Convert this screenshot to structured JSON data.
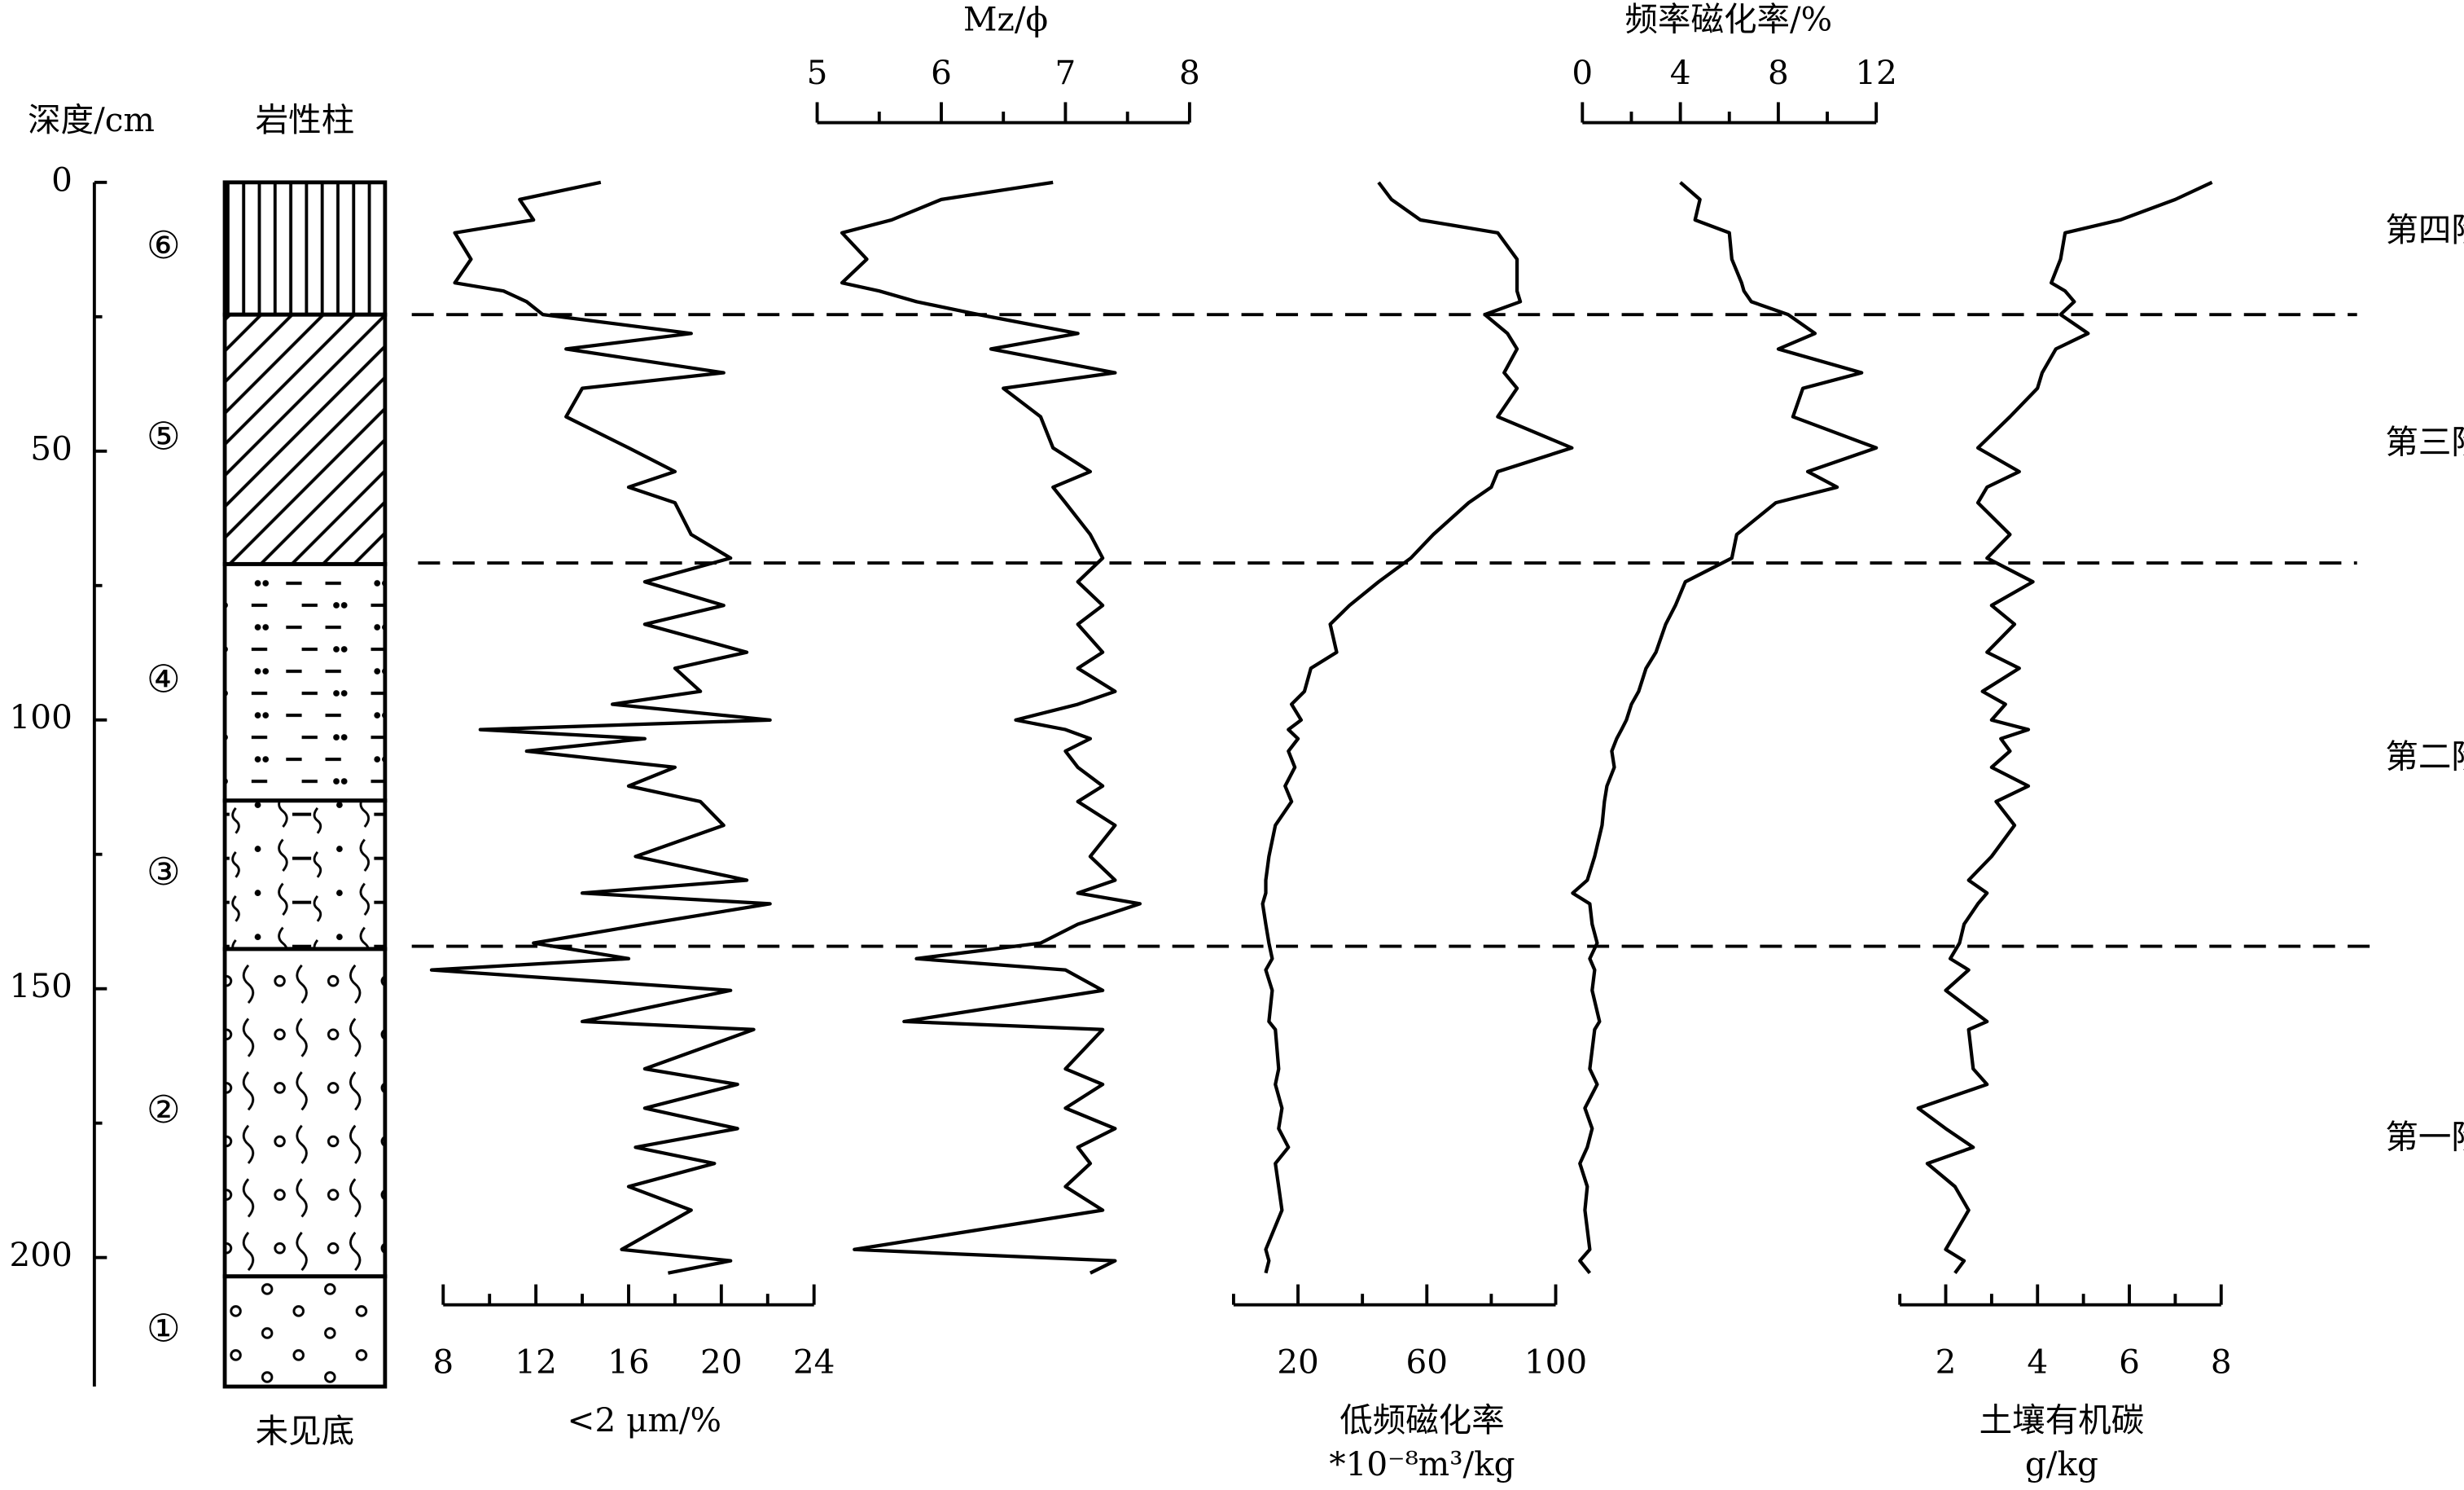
{
  "depth_axis": {
    "label": "深度/cm",
    "ylim": [
      0,
      224
    ],
    "yticks": [
      0,
      50,
      100,
      150,
      200
    ],
    "minor_yticks": [
      25,
      75,
      125,
      175
    ]
  },
  "depth": [
    0,
    3.2,
    7.0,
    9.4,
    14.3,
    18.7,
    20.2,
    22.2,
    24.6,
    28.1,
    31.0,
    35.4,
    38.3,
    43.6,
    49.4,
    53.8,
    56.7,
    59.6,
    65.5,
    69.9,
    74.3,
    78.7,
    82.2,
    87.4,
    90.4,
    94.7,
    97.1,
    100,
    101.8,
    103.5,
    105.8,
    108.8,
    112.3,
    115.2,
    119.6,
    125.4,
    129.8,
    132.2,
    134.2,
    138.0,
    141.5,
    144.4,
    146.5,
    150.3,
    156.1,
    157.6,
    164.9,
    167.8,
    172.2,
    176.0,
    179.5,
    182.5,
    186.8,
    191.2,
    198.5,
    200.6,
    202.9
  ],
  "lithology": {
    "title": "岩性柱",
    "footer": "未见底",
    "units": [
      {
        "label": "⑥",
        "top": 0,
        "bottom": 24.6,
        "pattern": "vertical"
      },
      {
        "label": "⑤",
        "top": 24.6,
        "bottom": 71,
        "pattern": "diagonal"
      },
      {
        "label": "④",
        "top": 71,
        "bottom": 115,
        "pattern": "dashdot"
      },
      {
        "label": "③",
        "top": 115,
        "bottom": 142.6,
        "pattern": "dashwave"
      },
      {
        "label": "②",
        "top": 142.6,
        "bottom": 203.5,
        "pattern": "dotwave"
      },
      {
        "label": "①",
        "top": 203.5,
        "bottom": 224,
        "pattern": "circles"
      }
    ]
  },
  "stages": {
    "labels": [
      "第四阶段",
      "第三阶段",
      "第二阶段",
      "第一阶段"
    ],
    "boundaries": [
      24.6,
      70.8,
      142.1
    ]
  },
  "chart_data": [
    {
      "type": "line",
      "xlabel": "<2 μm/%",
      "axis_position": "bottom",
      "xlim": [
        8,
        24
      ],
      "xticks": [
        8,
        12,
        16,
        20,
        24
      ],
      "minor_xticks": [
        10,
        14,
        18,
        22
      ],
      "color": "#000000",
      "values": [
        14.8,
        11.3,
        11.9,
        8.5,
        9.2,
        8.5,
        10.6,
        11.6,
        12.3,
        18.7,
        13.3,
        20.1,
        14.0,
        13.3,
        16.0,
        18.0,
        16.0,
        18.0,
        18.7,
        20.4,
        16.7,
        20.1,
        16.7,
        21.1,
        18.0,
        19.1,
        15.3,
        22.1,
        9.6,
        16.7,
        11.6,
        18.0,
        16.0,
        19.1,
        20.1,
        16.3,
        21.1,
        14.0,
        22.1,
        16.7,
        11.9,
        16.0,
        7.5,
        20.4,
        14.0,
        21.4,
        16.7,
        20.7,
        16.7,
        20.7,
        16.3,
        19.7,
        16.0,
        18.7,
        15.7,
        20.4,
        17.7
      ]
    },
    {
      "type": "line",
      "xlabel": "Mz/ϕ",
      "axis_position": "top",
      "xlim": [
        5,
        8
      ],
      "xticks": [
        5,
        6,
        7,
        8
      ],
      "minor_xticks": [
        5.5,
        6.5,
        7.5
      ],
      "color": "#000000",
      "values": [
        6.9,
        6.0,
        5.6,
        5.2,
        5.4,
        5.2,
        5.5,
        5.8,
        6.3,
        7.1,
        6.4,
        7.4,
        6.5,
        6.8,
        6.9,
        7.2,
        6.9,
        7.0,
        7.2,
        7.3,
        7.1,
        7.3,
        7.1,
        7.3,
        7.1,
        7.4,
        7.1,
        6.6,
        7.0,
        7.2,
        7.0,
        7.1,
        7.3,
        7.1,
        7.4,
        7.2,
        7.4,
        7.1,
        7.6,
        7.1,
        6.8,
        5.8,
        7.0,
        7.3,
        5.7,
        7.3,
        7.0,
        7.3,
        7.0,
        7.4,
        7.1,
        7.2,
        7.0,
        7.3,
        5.3,
        7.4,
        7.2
      ]
    },
    {
      "type": "line",
      "xlabel": "低频磁化率",
      "xlabel_unit": "*10⁻⁸m³/kg",
      "axis_position": "bottom",
      "xlim": [
        0,
        100
      ],
      "xticks": [
        20,
        60,
        100
      ],
      "minor_xticks": [
        0,
        40,
        80
      ],
      "color": "#000000",
      "values": [
        45,
        49,
        58,
        82,
        88,
        88,
        88,
        89,
        78,
        85,
        88,
        84,
        88,
        82,
        105,
        82,
        80,
        73,
        62,
        55,
        45,
        36,
        30,
        32,
        24,
        22,
        18,
        21,
        17,
        20,
        17,
        19,
        16,
        18,
        13,
        11,
        10,
        10,
        9,
        10,
        11,
        12,
        10,
        12,
        11,
        13,
        14,
        13,
        15,
        14,
        17,
        13,
        14,
        15,
        10,
        11,
        10
      ]
    },
    {
      "type": "line",
      "xlabel": "频率磁化率/%",
      "axis_position": "top",
      "xlim": [
        0,
        12
      ],
      "xticks": [
        0,
        4,
        8,
        12
      ],
      "minor_xticks": [
        2,
        6,
        10
      ],
      "color": "#000000",
      "values": [
        4.0,
        4.8,
        4.6,
        6.0,
        6.1,
        6.5,
        6.6,
        6.9,
        8.4,
        9.5,
        8.0,
        11.4,
        9.0,
        8.6,
        12.0,
        9.2,
        10.4,
        7.9,
        6.3,
        6.1,
        4.2,
        3.8,
        3.4,
        3.0,
        2.6,
        2.3,
        2.0,
        1.8,
        1.6,
        1.4,
        1.2,
        1.3,
        1.0,
        0.9,
        0.8,
        0.5,
        0.2,
        -0.4,
        0.3,
        0.4,
        0.6,
        0.3,
        0.5,
        0.4,
        0.7,
        0.5,
        0.3,
        0.6,
        0.1,
        0.4,
        0.2,
        -0.1,
        0.2,
        0.1,
        0.3,
        -0.1,
        0.3
      ]
    },
    {
      "type": "line",
      "xlabel": "土壤有机碳",
      "xlabel_unit": "g/kg",
      "axis_position": "bottom",
      "xlim": [
        1,
        8
      ],
      "xticks": [
        2,
        4,
        6,
        8
      ],
      "minor_xticks": [
        1,
        3,
        5,
        7
      ],
      "color": "#000000",
      "values": [
        7.8,
        7.0,
        5.8,
        4.6,
        4.5,
        4.3,
        4.6,
        4.8,
        4.5,
        5.1,
        4.4,
        4.1,
        4.0,
        3.4,
        2.7,
        3.6,
        2.9,
        2.7,
        3.4,
        2.9,
        3.9,
        3.0,
        3.5,
        2.9,
        3.6,
        2.8,
        3.3,
        3.0,
        3.8,
        3.2,
        3.4,
        3.0,
        3.8,
        3.1,
        3.5,
        3.0,
        2.5,
        2.9,
        2.7,
        2.4,
        2.3,
        2.1,
        2.5,
        2.0,
        2.9,
        2.5,
        2.6,
        2.9,
        1.4,
        2.0,
        2.6,
        1.6,
        2.2,
        2.5,
        2.0,
        2.4,
        2.2
      ]
    }
  ]
}
